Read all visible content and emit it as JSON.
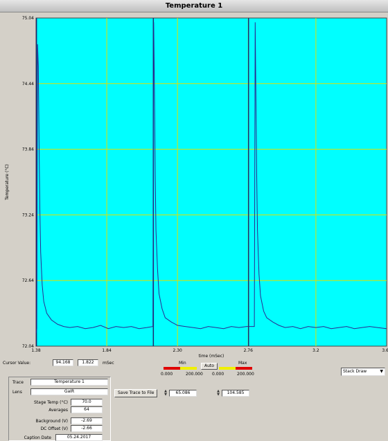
{
  "window": {
    "title": "Temperature 1"
  },
  "chart_data": {
    "type": "line",
    "title": "",
    "xlabel": "time (mSec)",
    "ylabel": "Temperature (°C)",
    "xlim": [
      1.38,
      3.66
    ],
    "ylim": [
      72.04,
      75.04
    ],
    "x_ticks": [
      1.38,
      1.84,
      2.3,
      2.76,
      3.2,
      3.66
    ],
    "x_tick_labels": [
      "1.38",
      "1.84",
      "2.30",
      "2.76",
      "3.2",
      "3.66"
    ],
    "y_ticks": [
      72.04,
      72.64,
      73.24,
      73.84,
      74.44,
      75.04
    ],
    "y_tick_labels": [
      "72.04",
      "72.64",
      "73.24",
      "73.84",
      "74.44",
      "75.04"
    ],
    "grid": true,
    "series": [
      {
        "name": "",
        "color": "#2a2a90",
        "x": [
          1.38,
          1.385,
          1.39,
          1.395,
          1.4,
          1.405,
          1.41,
          1.42,
          1.43,
          1.45,
          1.48,
          1.52,
          1.56,
          1.6,
          1.65,
          1.7,
          1.75,
          1.8,
          1.85,
          1.9,
          1.95,
          2.0,
          2.05,
          2.1,
          2.14,
          2.145,
          2.15,
          2.155,
          2.16,
          2.17,
          2.18,
          2.2,
          2.22,
          2.26,
          2.3,
          2.35,
          2.4,
          2.45,
          2.5,
          2.55,
          2.6,
          2.65,
          2.7,
          2.75,
          2.8,
          2.805,
          2.81,
          2.815,
          2.82,
          2.83,
          2.84,
          2.86,
          2.88,
          2.92,
          2.96,
          3.0,
          3.05,
          3.1,
          3.15,
          3.2,
          3.25,
          3.3,
          3.35,
          3.4,
          3.45,
          3.5,
          3.55,
          3.6,
          3.66
        ],
        "values": [
          72.16,
          72.2,
          74.8,
          74.6,
          73.9,
          73.3,
          72.9,
          72.6,
          72.45,
          72.34,
          72.28,
          72.24,
          72.22,
          72.21,
          72.22,
          72.2,
          72.21,
          72.23,
          72.2,
          72.22,
          72.21,
          72.22,
          72.2,
          72.21,
          72.22,
          75.0,
          74.4,
          73.6,
          73.1,
          72.75,
          72.52,
          72.38,
          72.3,
          72.26,
          72.23,
          72.22,
          72.21,
          72.2,
          72.22,
          72.21,
          72.2,
          72.22,
          72.21,
          72.22,
          72.22,
          75.0,
          74.3,
          73.6,
          73.1,
          72.7,
          72.5,
          72.36,
          72.3,
          72.26,
          72.23,
          72.21,
          72.22,
          72.2,
          72.22,
          72.21,
          72.22,
          72.2,
          72.21,
          72.22,
          72.2,
          72.21,
          72.22,
          72.21,
          72.2
        ]
      }
    ],
    "cursor_markers": [
      1.383,
      2.143,
      2.762
    ]
  },
  "controls": {
    "cursor_value_label": "Cursor Value:",
    "cursor_value": "94.168",
    "cursor_time": "1.822",
    "cursor_time_unit": "mSec",
    "scale_min_label": "Min",
    "scale_auto_label": "Auto",
    "scale_max_label": "Max",
    "range_low_min": "0.000",
    "range_low_max": "200.000",
    "range_high_min": "0.000",
    "range_high_max": "200.000",
    "min_value": "65.086",
    "max_value": "104.585",
    "save_button": "Save Trace to File",
    "dropdown_value": "Stack Draw"
  },
  "info_panel": {
    "trace_label": "Trace",
    "trace_value": "Temperature 1",
    "lens_label": "Lens",
    "lens_value": "GaIR",
    "stage_temp_label": "Stage Temp (°C)",
    "stage_temp_value": "70.0",
    "averages_label": "Averages",
    "averages_value": "64",
    "background_label": "Background (V)",
    "background_value": "-2.69",
    "dc_offset_label": "DC Offset (V)",
    "dc_offset_value": "-2.66",
    "caption_date_label": "Caption Date",
    "caption_date_value": "05.24.2017"
  }
}
